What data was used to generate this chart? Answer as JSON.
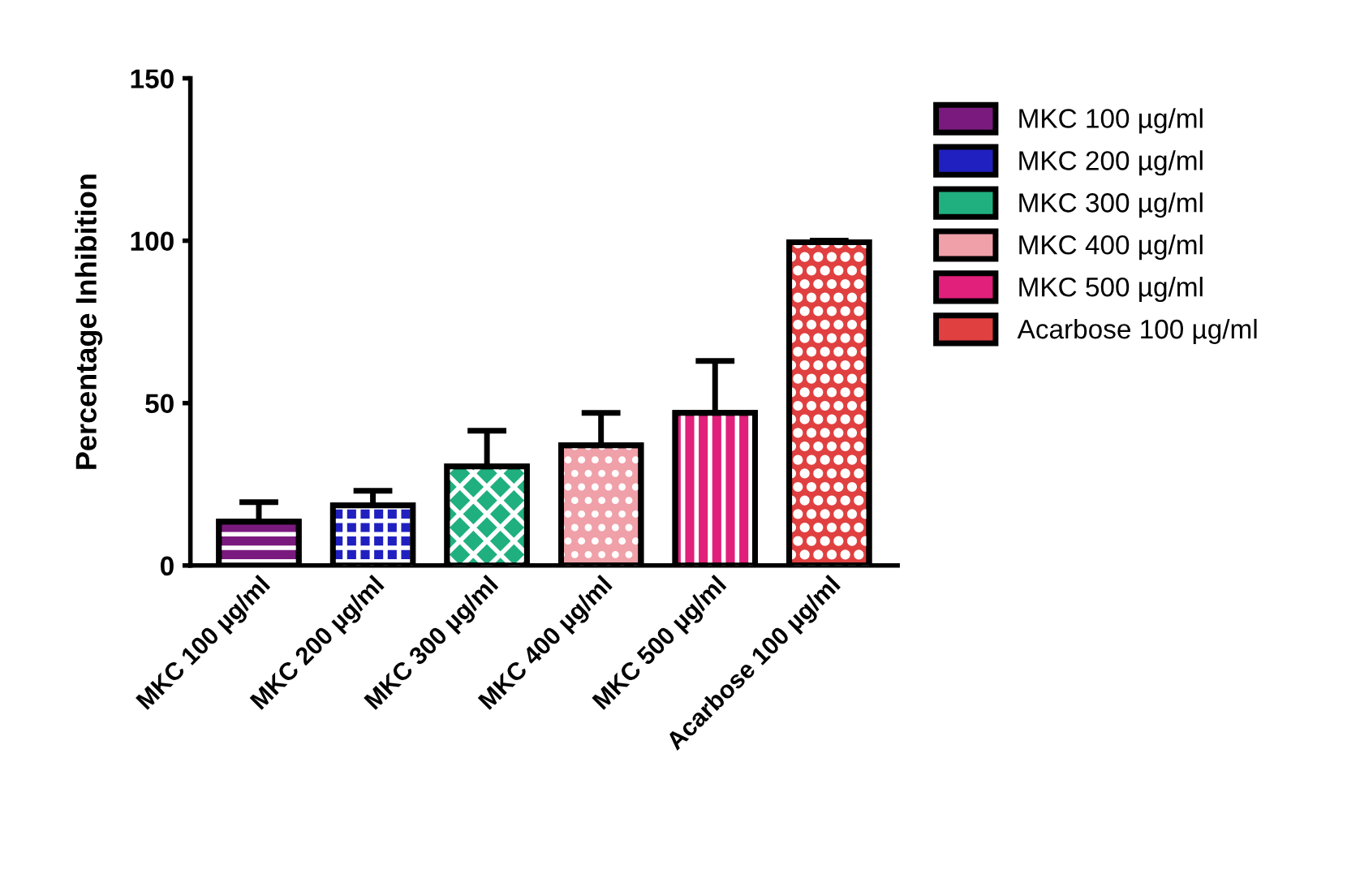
{
  "chart_data": {
    "type": "bar",
    "ylabel": "Percentage Inhibition",
    "categories": [
      "MKC 100 µg/ml",
      "MKC 200 µg/ml",
      "MKC 300 µg/ml",
      "MKC 400 µg/ml",
      "MKC 500 µg/ml",
      "Acarbose 100 µg/ml"
    ],
    "series": [
      {
        "name": "MKC 100 µg/ml",
        "color": "#7a1a7e",
        "values": [
          13.5,
          null,
          null,
          null,
          null,
          null
        ],
        "errors": [
          [
            13.5,
            19.5
          ],
          null,
          null,
          null,
          null,
          null
        ]
      },
      {
        "name": "MKC 200 µg/ml",
        "color": "#2020c0",
        "values": [
          null,
          18.5,
          null,
          null,
          null,
          null
        ],
        "errors": [
          null,
          [
            18.5,
            23
          ],
          null,
          null,
          null,
          null
        ]
      },
      {
        "name": "MKC 300 µg/ml",
        "color": "#20b080",
        "values": [
          null,
          null,
          30.5,
          null,
          null,
          null
        ],
        "errors": [
          null,
          null,
          [
            30.5,
            41.5
          ],
          null,
          null,
          null
        ]
      },
      {
        "name": "MKC 400 µg/ml",
        "color": "#f0a0a8",
        "values": [
          null,
          null,
          null,
          37,
          null,
          null
        ],
        "errors": [
          null,
          null,
          null,
          [
            37,
            47
          ],
          null,
          null
        ]
      },
      {
        "name": "MKC 500 µg/ml",
        "color": "#e0207a",
        "values": [
          null,
          null,
          null,
          null,
          47,
          null
        ],
        "errors": [
          null,
          null,
          null,
          null,
          [
            47,
            63
          ],
          null
        ]
      },
      {
        "name": "Acarbose 100 µg/ml",
        "color": "#e04040",
        "values": [
          null,
          null,
          null,
          null,
          null,
          99.5
        ],
        "errors": [
          null,
          null,
          null,
          null,
          null,
          [
            99.5,
            100
          ]
        ]
      }
    ],
    "ylim": [
      0,
      150
    ],
    "yticks": [
      0,
      50,
      100,
      150
    ],
    "legend": "right",
    "grid": false
  }
}
